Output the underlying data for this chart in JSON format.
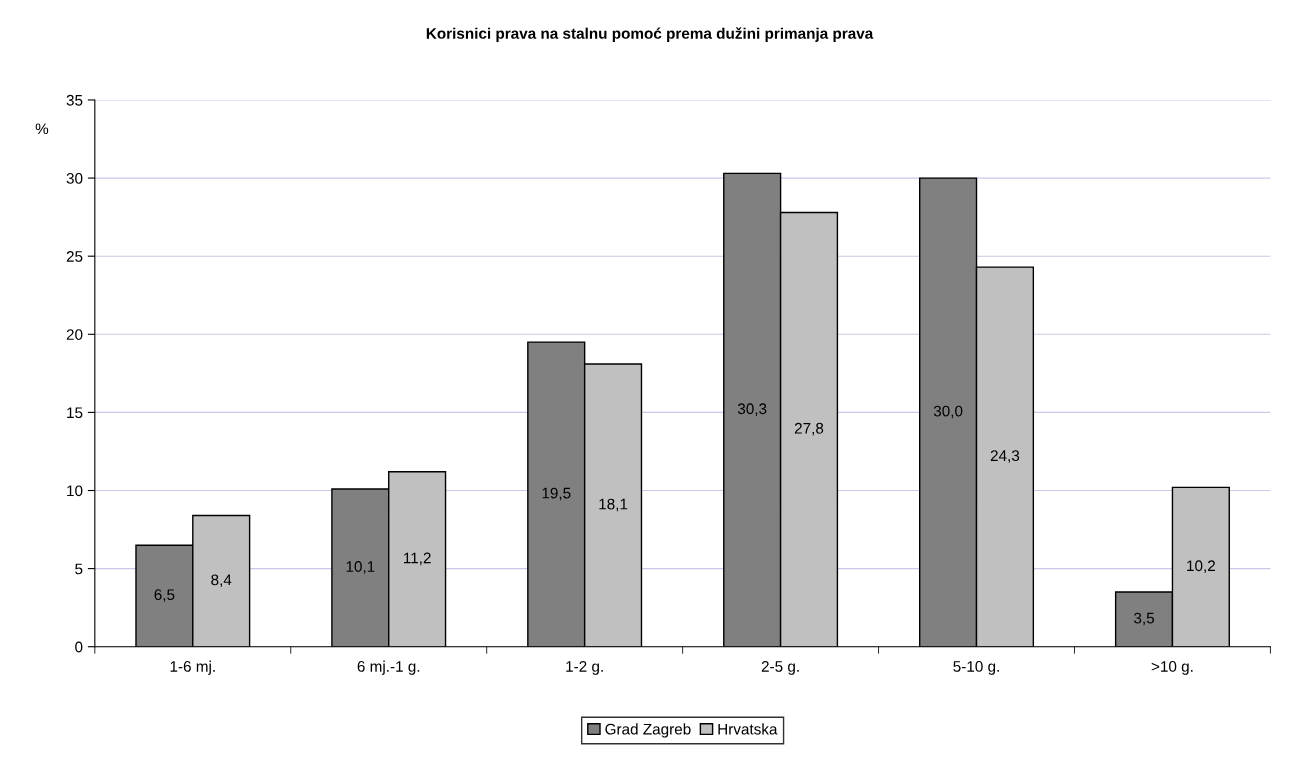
{
  "chart_data": {
    "type": "bar",
    "title": "Korisnici prava na stalnu pomoć prema dužini primanja prava",
    "ylabel": "%",
    "categories": [
      "1-6 mj.",
      "6 mj.-1 g.",
      "1-2 g.",
      "2-5 g.",
      "5-10 g.",
      ">10 g."
    ],
    "series": [
      {
        "name": "Grad Zagreb",
        "color": "#808080",
        "values": [
          6.5,
          10.1,
          19.5,
          30.3,
          30.0,
          3.5
        ],
        "value_labels": [
          "6,5",
          "10,1",
          "19,5",
          "30,3",
          "30,0",
          "3,5"
        ]
      },
      {
        "name": "Hrvatska",
        "color": "#c0c0c0",
        "values": [
          8.4,
          11.2,
          18.1,
          27.8,
          24.3,
          10.2
        ],
        "value_labels": [
          "8,4",
          "11,2",
          "18,1",
          "27,8",
          "24,3",
          "10,2"
        ]
      }
    ],
    "ylim": [
      0,
      35
    ],
    "yticks": [
      0,
      5,
      10,
      15,
      20,
      25,
      30,
      35
    ],
    "grid": "y",
    "legend": "bottom"
  }
}
